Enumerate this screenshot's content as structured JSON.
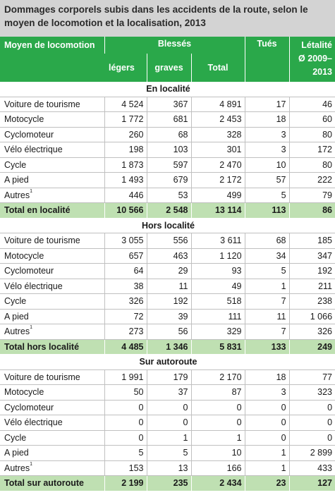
{
  "title": "Dommages corporels subis dans les accidents de la route, selon le moyen de locomotion et la localisation, 2013",
  "header": {
    "col_moyen": "Moyen de locomotion",
    "col_blesses": "Blessés",
    "col_legers": "légers",
    "col_graves": "graves",
    "col_total": "Total",
    "col_tues": "Tués",
    "col_letalite": "Létalité Ø 2009–2013"
  },
  "colors": {
    "header_bg": "#2aa84a",
    "total_bg": "#bfe0b2",
    "title_bg": "#d3d3d3"
  },
  "sections": [
    {
      "label": "En localité",
      "rows": [
        {
          "name": "Voiture de tourisme",
          "legers": "4 524",
          "graves": "367",
          "total": "4 891",
          "tues": "17",
          "letalite": "46"
        },
        {
          "name": "Motocycle",
          "legers": "1 772",
          "graves": "681",
          "total": "2 453",
          "tues": "18",
          "letalite": "60"
        },
        {
          "name": "Cyclomoteur",
          "legers": "260",
          "graves": "68",
          "total": "328",
          "tues": "3",
          "letalite": "80"
        },
        {
          "name": "Vélo électrique",
          "legers": "198",
          "graves": "103",
          "total": "301",
          "tues": "3",
          "letalite": "172"
        },
        {
          "name": "Cycle",
          "legers": "1 873",
          "graves": "597",
          "total": "2 470",
          "tues": "10",
          "letalite": "80"
        },
        {
          "name": "A pied",
          "legers": "1 493",
          "graves": "679",
          "total": "2 172",
          "tues": "57",
          "letalite": "222"
        },
        {
          "name": "Autres",
          "sup": "1",
          "legers": "446",
          "graves": "53",
          "total": "499",
          "tues": "5",
          "letalite": "79"
        }
      ],
      "total": {
        "name": "Total en localité",
        "legers": "10 566",
        "graves": "2 548",
        "total": "13 114",
        "tues": "113",
        "letalite": "86"
      }
    },
    {
      "label": "Hors localité",
      "rows": [
        {
          "name": "Voiture de tourisme",
          "legers": "3 055",
          "graves": "556",
          "total": "3 611",
          "tues": "68",
          "letalite": "185"
        },
        {
          "name": "Motocycle",
          "legers": "657",
          "graves": "463",
          "total": "1 120",
          "tues": "34",
          "letalite": "347"
        },
        {
          "name": "Cyclomoteur",
          "legers": "64",
          "graves": "29",
          "total": "93",
          "tues": "5",
          "letalite": "192"
        },
        {
          "name": "Vélo électrique",
          "legers": "38",
          "graves": "11",
          "total": "49",
          "tues": "1",
          "letalite": "211"
        },
        {
          "name": "Cycle",
          "legers": "326",
          "graves": "192",
          "total": "518",
          "tues": "7",
          "letalite": "238"
        },
        {
          "name": "A pied",
          "legers": "72",
          "graves": "39",
          "total": "111",
          "tues": "11",
          "letalite": "1 066"
        },
        {
          "name": "Autres",
          "sup": "1",
          "legers": "273",
          "graves": "56",
          "total": "329",
          "tues": "7",
          "letalite": "326"
        }
      ],
      "total": {
        "name": "Total hors localité",
        "legers": "4 485",
        "graves": "1 346",
        "total": "5 831",
        "tues": "133",
        "letalite": "249"
      }
    },
    {
      "label": "Sur autoroute",
      "rows": [
        {
          "name": "Voiture de tourisme",
          "legers": "1 991",
          "graves": "179",
          "total": "2 170",
          "tues": "18",
          "letalite": "77"
        },
        {
          "name": "Motocycle",
          "legers": "50",
          "graves": "37",
          "total": "87",
          "tues": "3",
          "letalite": "323"
        },
        {
          "name": "Cyclomoteur",
          "legers": "0",
          "graves": "0",
          "total": "0",
          "tues": "0",
          "letalite": "0"
        },
        {
          "name": "Vélo électrique",
          "legers": "0",
          "graves": "0",
          "total": "0",
          "tues": "0",
          "letalite": "0"
        },
        {
          "name": "Cycle",
          "legers": "0",
          "graves": "1",
          "total": "1",
          "tues": "0",
          "letalite": "0"
        },
        {
          "name": "A pied",
          "legers": "5",
          "graves": "5",
          "total": "10",
          "tues": "1",
          "letalite": "2 899"
        },
        {
          "name": "Autres",
          "sup": "1",
          "legers": "153",
          "graves": "13",
          "total": "166",
          "tues": "1",
          "letalite": "433"
        }
      ],
      "total": {
        "name": "Total sur autoroute",
        "legers": "2 199",
        "graves": "235",
        "total": "2 434",
        "tues": "23",
        "letalite": "127"
      }
    }
  ]
}
